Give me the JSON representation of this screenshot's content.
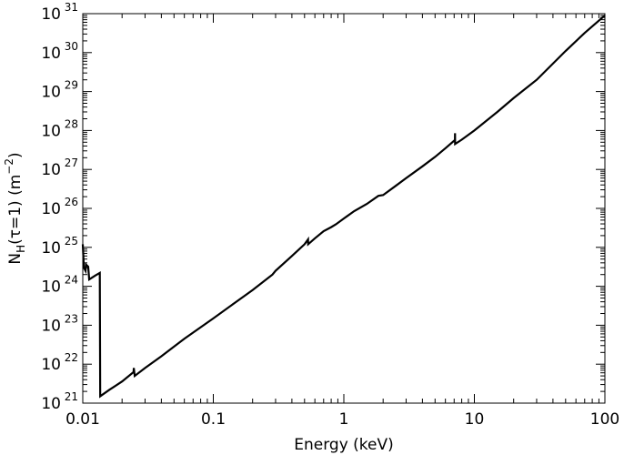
{
  "chart_data": {
    "type": "line",
    "title": "",
    "xlabel": "Energy (keV)",
    "ylabel": {
      "base": "N",
      "subscript": "H",
      "middle": "(τ=1)  (m",
      "superscript": "−2",
      "end": ")"
    },
    "x_scale": "log",
    "y_scale": "log",
    "xlim": [
      0.01,
      100
    ],
    "ylim": [
      1e+21,
      1e+31
    ],
    "grid": false,
    "x_ticks": [
      {
        "value": 0.01,
        "label": "0.01"
      },
      {
        "value": 0.1,
        "label": "0.1"
      },
      {
        "value": 1,
        "label": "1"
      },
      {
        "value": 10,
        "label": "10"
      },
      {
        "value": 100,
        "label": "100"
      }
    ],
    "y_ticks": [
      {
        "value": 1e+21,
        "base": "10",
        "exp": "21"
      },
      {
        "value": 1e+22,
        "base": "10",
        "exp": "22"
      },
      {
        "value": 1e+23,
        "base": "10",
        "exp": "23"
      },
      {
        "value": 1e+24,
        "base": "10",
        "exp": "24"
      },
      {
        "value": 1e+25,
        "base": "10",
        "exp": "25"
      },
      {
        "value": 1e+26,
        "base": "10",
        "exp": "26"
      },
      {
        "value": 1e+27,
        "base": "10",
        "exp": "27"
      },
      {
        "value": 1e+28,
        "base": "10",
        "exp": "28"
      },
      {
        "value": 1e+29,
        "base": "10",
        "exp": "29"
      },
      {
        "value": 1e+30,
        "base": "10",
        "exp": "30"
      },
      {
        "value": 1e+31,
        "base": "10",
        "exp": "31"
      }
    ],
    "series": [
      {
        "color": "#000000",
        "points": [
          [
            0.01,
            1.2e+25
          ],
          [
            0.0102,
            3e+24
          ],
          [
            0.0105,
            2.5e+24
          ],
          [
            0.0106,
            3.6e+24
          ],
          [
            0.011,
            3.2e+24
          ],
          [
            0.0112,
            1.5e+24
          ],
          [
            0.0125,
            1.9e+24
          ],
          [
            0.0135,
            2.2e+24
          ],
          [
            0.0136,
            1.5e+21
          ],
          [
            0.016,
            2.2e+21
          ],
          [
            0.02,
            3.6e+21
          ],
          [
            0.0245,
            6.3e+21
          ],
          [
            0.0246,
            8e+21
          ],
          [
            0.025,
            5e+21
          ],
          [
            0.03,
            8e+21
          ],
          [
            0.04,
            1.6e+22
          ],
          [
            0.06,
            4.5e+22
          ],
          [
            0.1,
            1.5e+23
          ],
          [
            0.15,
            4e+23
          ],
          [
            0.2,
            8e+23
          ],
          [
            0.284,
            2e+24
          ],
          [
            0.3,
            2.5e+24
          ],
          [
            0.4,
            6e+24
          ],
          [
            0.5,
            1.2e+25
          ],
          [
            0.532,
            1.6e+25
          ],
          [
            0.533,
            1.2e+25
          ],
          [
            0.6,
            1.7e+25
          ],
          [
            0.7,
            2.6e+25
          ],
          [
            0.8,
            3.3e+25
          ],
          [
            0.87,
            3.9e+25
          ],
          [
            1.0,
            5.5e+25
          ],
          [
            1.2,
            8.5e+25
          ],
          [
            1.5,
            1.3e+26
          ],
          [
            1.84,
            2.1e+26
          ],
          [
            2.0,
            2.2e+26
          ],
          [
            2.5,
            3.8e+26
          ],
          [
            3.0,
            6e+26
          ],
          [
            4.0,
            1.2e+27
          ],
          [
            5.0,
            2.1e+27
          ],
          [
            6.0,
            3.5e+27
          ],
          [
            7.1,
            5.7e+27
          ],
          [
            7.11,
            8.5e+27
          ],
          [
            7.12,
            4.5e+27
          ],
          [
            8.0,
            5.8e+27
          ],
          [
            10.0,
            1e+28
          ],
          [
            15.0,
            3e+28
          ],
          [
            20.0,
            6.8e+28
          ],
          [
            30.0,
            2e+29
          ],
          [
            50.0,
            1.1e+30
          ],
          [
            70.0,
            3.2e+30
          ],
          [
            100.0,
            9e+30
          ]
        ]
      }
    ]
  }
}
